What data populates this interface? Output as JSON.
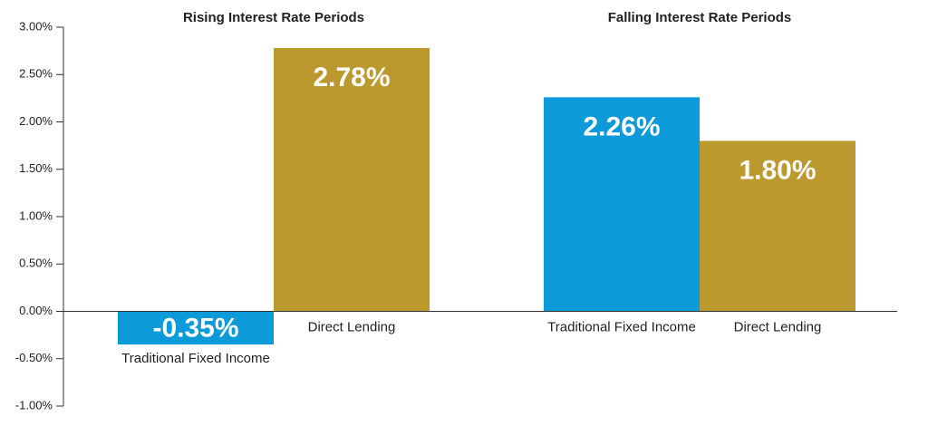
{
  "chart_data": {
    "type": "bar",
    "categories": [
      "Rising Interest Rate Periods",
      "Falling Interest Rate Periods"
    ],
    "series": [
      {
        "name": "Traditional Fixed Income",
        "color": "#0c9ad8",
        "values": [
          -0.35,
          2.26
        ],
        "value_labels": [
          "-0.35%",
          "2.26%"
        ]
      },
      {
        "name": "Direct Lending",
        "color": "#bc992e",
        "values": [
          2.78,
          1.8
        ],
        "value_labels": [
          "2.78%",
          "1.80%"
        ]
      }
    ],
    "ylim": [
      -1,
      3
    ],
    "yticks": [
      {
        "value": -1,
        "label": "-1.00%"
      },
      {
        "value": -0.5,
        "label": "-0.50%"
      },
      {
        "value": 0,
        "label": "0.00%"
      },
      {
        "value": 0.5,
        "label": "0.50%"
      },
      {
        "value": 1,
        "label": "1.00%"
      },
      {
        "value": 1.5,
        "label": "1.50%"
      },
      {
        "value": 2,
        "label": "2.00%"
      },
      {
        "value": 2.5,
        "label": "2.50%"
      },
      {
        "value": 3,
        "label": "3.00%"
      }
    ],
    "grid": false
  }
}
